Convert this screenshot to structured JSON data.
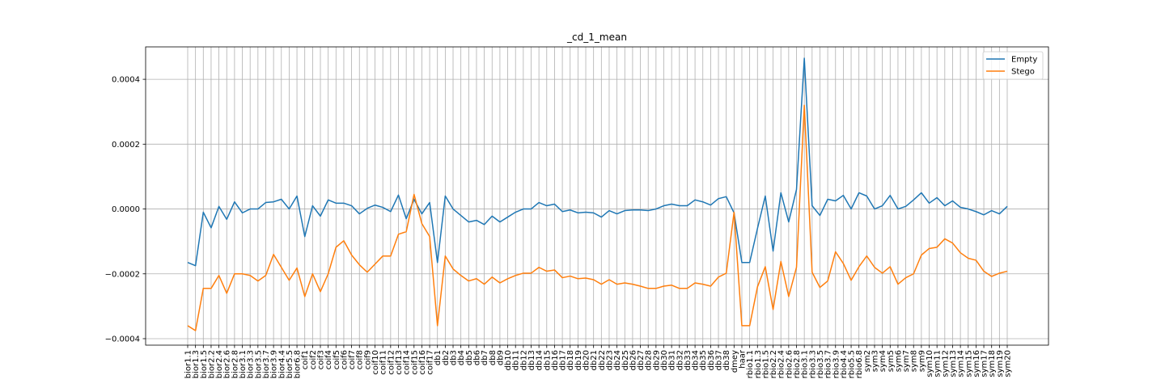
{
  "chart_data": {
    "type": "line",
    "title": "_cd_1_mean",
    "xlabel": "",
    "ylabel": "",
    "ylim": [
      -0.00042,
      0.0005
    ],
    "yticks": [
      -0.0004,
      -0.0002,
      0.0,
      0.0002,
      0.0004
    ],
    "ytick_labels": [
      "−0.0004",
      "−0.0002",
      "0.0000",
      "0.0002",
      "0.0004"
    ],
    "grid": true,
    "legend_position": "top-right",
    "categories": [
      "bior1.1",
      "bior1.3",
      "bior1.5",
      "bior2.2",
      "bior2.4",
      "bior2.6",
      "bior2.8",
      "bior3.1",
      "bior3.3",
      "bior3.5",
      "bior3.7",
      "bior3.9",
      "bior4.4",
      "bior5.5",
      "bior6.8",
      "coif1",
      "coif2",
      "coif3",
      "coif4",
      "coif5",
      "coif6",
      "coif7",
      "coif8",
      "coif9",
      "coif10",
      "coif11",
      "coif12",
      "coif13",
      "coif14",
      "coif15",
      "coif16",
      "coif17",
      "db1",
      "db2",
      "db3",
      "db4",
      "db5",
      "db6",
      "db7",
      "db8",
      "db9",
      "db10",
      "db11",
      "db12",
      "db13",
      "db14",
      "db15",
      "db16",
      "db17",
      "db18",
      "db19",
      "db20",
      "db21",
      "db22",
      "db23",
      "db24",
      "db25",
      "db26",
      "db27",
      "db28",
      "db29",
      "db30",
      "db31",
      "db32",
      "db33",
      "db34",
      "db35",
      "db36",
      "db37",
      "db38",
      "dmey",
      "haar",
      "rbio1.1",
      "rbio1.3",
      "rbio1.5",
      "rbio2.2",
      "rbio2.4",
      "rbio2.6",
      "rbio2.8",
      "rbio3.1",
      "rbio3.3",
      "rbio3.5",
      "rbio3.7",
      "rbio3.9",
      "rbio4.4",
      "rbio5.5",
      "rbio6.8",
      "sym2",
      "sym3",
      "sym4",
      "sym5",
      "sym6",
      "sym7",
      "sym8",
      "sym9",
      "sym10",
      "sym11",
      "sym12",
      "sym13",
      "sym14",
      "sym15",
      "sym16",
      "sym17",
      "sym18",
      "sym19",
      "sym20"
    ],
    "series": [
      {
        "name": "Empty",
        "color": "#1f77b4",
        "values": [
          -0.000165,
          -0.000175,
          -1e-05,
          -5.8e-05,
          8e-06,
          -3.2e-05,
          2.2e-05,
          -1.2e-05,
          0.0,
          0.0,
          2e-05,
          2.2e-05,
          3e-05,
          0.0,
          4e-05,
          -8.5e-05,
          1e-05,
          -2.2e-05,
          2.8e-05,
          1.8e-05,
          1.8e-05,
          1e-05,
          -1.5e-05,
          2e-06,
          1.2e-05,
          5e-06,
          -8e-06,
          4.3e-05,
          -3e-05,
          3e-05,
          -1.5e-05,
          2e-05,
          -0.000165,
          4e-05,
          0.0,
          -2e-05,
          -4e-05,
          -3.5e-05,
          -4.8e-05,
          -2.2e-05,
          -4e-05,
          -2.5e-05,
          -1e-05,
          0.0,
          0.0,
          2e-05,
          1e-05,
          1.5e-05,
          -8e-06,
          -3e-06,
          -1.2e-05,
          -1e-05,
          -1.2e-05,
          -2.5e-05,
          -5e-06,
          -1.5e-05,
          -5e-06,
          -3e-06,
          -3e-06,
          -5e-06,
          0.0,
          1e-05,
          1.5e-05,
          1e-05,
          1e-05,
          2.8e-05,
          2.2e-05,
          1.2e-05,
          3.2e-05,
          3.8e-05,
          -1.2e-05,
          -0.000165,
          -0.000165,
          -6e-05,
          4e-05,
          -0.00013,
          5e-05,
          -4e-05,
          6e-05,
          0.000465,
          1e-05,
          -2e-05,
          3e-05,
          2.5e-05,
          4.2e-05,
          0.0,
          5e-05,
          4e-05,
          0.0,
          1e-05,
          4.2e-05,
          0.0,
          8e-06,
          2.8e-05,
          5e-05,
          1.8e-05,
          3.5e-05,
          1e-05,
          2.5e-05,
          5e-06,
          0.0,
          -8e-06,
          -1.8e-05,
          -5e-06,
          -1.5e-05,
          8e-06
        ]
      },
      {
        "name": "Stego",
        "color": "#ff7f0e",
        "values": [
          -0.00036,
          -0.000375,
          -0.000245,
          -0.000245,
          -0.000205,
          -0.00026,
          -0.0002,
          -0.0002,
          -0.000205,
          -0.000222,
          -0.000205,
          -0.00014,
          -0.00018,
          -0.00022,
          -0.000182,
          -0.00027,
          -0.0002,
          -0.000255,
          -0.0002,
          -0.000118,
          -9.8e-05,
          -0.000142,
          -0.000172,
          -0.000195,
          -0.00017,
          -0.000145,
          -0.000145,
          -7.8e-05,
          -7e-05,
          4.5e-05,
          -4.5e-05,
          -8.5e-05,
          -0.00036,
          -0.000145,
          -0.000185,
          -0.000205,
          -0.000222,
          -0.000215,
          -0.000232,
          -0.00021,
          -0.000228,
          -0.000215,
          -0.000205,
          -0.000198,
          -0.000198,
          -0.00018,
          -0.000192,
          -0.000188,
          -0.000212,
          -0.000207,
          -0.000215,
          -0.000213,
          -0.000218,
          -0.000232,
          -0.000218,
          -0.000232,
          -0.000228,
          -0.000232,
          -0.000238,
          -0.000245,
          -0.000245,
          -0.000238,
          -0.000235,
          -0.000245,
          -0.000245,
          -0.000228,
          -0.000232,
          -0.000238,
          -0.00021,
          -0.000198,
          -1e-05,
          -0.00036,
          -0.00036,
          -0.00024,
          -0.000178,
          -0.00031,
          -0.000162,
          -0.00027,
          -0.00018,
          0.00032,
          -0.000195,
          -0.000242,
          -0.000222,
          -0.000132,
          -0.000168,
          -0.00022,
          -0.000178,
          -0.000145,
          -0.00018,
          -0.000198,
          -0.000178,
          -0.000232,
          -0.000212,
          -0.0002,
          -0.000142,
          -0.000122,
          -0.000118,
          -9.2e-05,
          -0.000105,
          -0.000135,
          -0.000152,
          -0.000158,
          -0.000192,
          -0.000208,
          -0.000198,
          -0.000192
        ]
      }
    ]
  }
}
